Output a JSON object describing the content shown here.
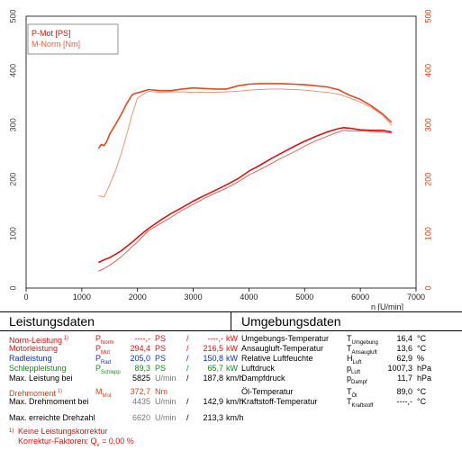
{
  "chart_data": {
    "type": "line",
    "xlabel": "n [U/min]",
    "xlim": [
      0,
      7000
    ],
    "x_ticks": [
      "0",
      "1000",
      "2000",
      "3000",
      "4000",
      "5000",
      "6000",
      "7000"
    ],
    "ylim_left": [
      0,
      500
    ],
    "y_ticks_left": [
      "0",
      "100",
      "200",
      "300",
      "400",
      "500"
    ],
    "ylim_right": [
      0,
      500
    ],
    "y_ticks_right": [
      "0",
      "100",
      "200",
      "300",
      "400",
      "500"
    ],
    "grid": true,
    "legend_position": "top-left",
    "legend": [
      {
        "label": "P-Mot [PS]",
        "color": "#e01010"
      },
      {
        "label": "M-Norm [Nm]",
        "color": "#f06030"
      }
    ],
    "series": [
      {
        "name": "P-Mot [PS]",
        "axis": "left",
        "color": "#dd1111",
        "width": 1.6,
        "x": [
          1300,
          1400,
          1500,
          1600,
          1700,
          1800,
          1900,
          2000,
          2200,
          2400,
          2600,
          2800,
          3000,
          3200,
          3400,
          3600,
          3800,
          4000,
          4200,
          4400,
          4600,
          4800,
          5000,
          5200,
          5400,
          5600,
          5700,
          5800,
          6000,
          6200,
          6400,
          6560
        ],
        "y": [
          47,
          52,
          56,
          62,
          68,
          76,
          84,
          93,
          110,
          124,
          137,
          148,
          160,
          170,
          180,
          190,
          201,
          215,
          226,
          238,
          249,
          260,
          270,
          279,
          287,
          293,
          295,
          294,
          291,
          290,
          290,
          287
        ]
      },
      {
        "name": "P-Mot [PS] thin",
        "axis": "left",
        "color": "#e85050",
        "width": 0.9,
        "x": [
          1300,
          1400,
          1500,
          1600,
          1700,
          1800,
          1900,
          2000,
          2200,
          2400,
          2600,
          2800,
          3000,
          3200,
          3400,
          3600,
          3800,
          4000,
          4200,
          4400,
          4600,
          4800,
          5000,
          5200,
          5400,
          5600,
          5700,
          5800,
          6000,
          6200,
          6400,
          6560
        ],
        "y": [
          31,
          36,
          42,
          49,
          57,
          66,
          76,
          85,
          106,
          118,
          130,
          143,
          154,
          165,
          175,
          184,
          195,
          208,
          218,
          229,
          240,
          250,
          261,
          271,
          279,
          287,
          290,
          289,
          289,
          288,
          287,
          285
        ]
      },
      {
        "name": "M-Norm [Nm]",
        "axis": "right",
        "color": "#e24a1e",
        "width": 1.6,
        "x": [
          1300,
          1350,
          1400,
          1450,
          1500,
          1600,
          1700,
          1800,
          1900,
          1950,
          2000,
          2200,
          2400,
          2600,
          2800,
          3000,
          3200,
          3400,
          3600,
          3800,
          4000,
          4200,
          4400,
          4600,
          4800,
          5000,
          5200,
          5400,
          5600,
          5800,
          6000,
          6200,
          6400,
          6560
        ],
        "y": [
          257,
          264,
          262,
          270,
          283,
          300,
          318,
          338,
          355,
          358,
          359,
          365,
          363,
          363,
          366,
          368,
          367,
          366,
          366,
          372,
          375,
          376,
          376,
          376,
          375,
          374,
          372,
          370,
          365,
          355,
          347,
          335,
          320,
          305
        ]
      },
      {
        "name": "M-Norm [Nm] thin",
        "axis": "right",
        "color": "#f08a6a",
        "width": 0.9,
        "x": [
          1300,
          1400,
          1500,
          1600,
          1700,
          1800,
          1900,
          2000,
          2200,
          2400,
          2600,
          2800,
          3000,
          3200,
          3400,
          3600,
          3800,
          4000,
          4200,
          4400,
          4600,
          4800,
          5000,
          5200,
          5400,
          5600,
          5800,
          6000,
          6200,
          6400,
          6560
        ],
        "y": [
          170,
          167,
          190,
          215,
          245,
          280,
          318,
          350,
          362,
          360,
          361,
          361,
          360,
          360,
          360,
          361,
          362,
          364,
          365,
          366,
          366,
          365,
          364,
          362,
          360,
          357,
          350,
          342,
          332,
          318,
          300
        ]
      }
    ]
  },
  "leistung": {
    "title": "Leistungsdaten",
    "rows": [
      {
        "label": "Norm-Leistung",
        "label_sup": "1)",
        "sym": "P",
        "sub": "Norm",
        "v1": "----,-",
        "u1": "PS",
        "sep": "/",
        "v2": "----,-",
        "u2": "kW",
        "color": "#e01010"
      },
      {
        "label": "Motorleistung",
        "label_sup": "",
        "sym": "P",
        "sub": "Mot",
        "v1": "294,4",
        "u1": "PS",
        "sep": "/",
        "v2": "216,5",
        "u2": "kW",
        "color": "#e01010"
      },
      {
        "label": "Radleistung",
        "label_sup": "",
        "sym": "P",
        "sub": "Rad",
        "v1": "205,0",
        "u1": "PS",
        "sep": "/",
        "v2": "150,8",
        "u2": "kW",
        "color": "#1030c0"
      },
      {
        "label": "Schleppleistung",
        "label_sup": "",
        "sym": "P",
        "sub": "Schlepp",
        "v1": "89,3",
        "u1": "PS",
        "sep": "/",
        "v2": "65,7",
        "u2": "kW",
        "color": "#10901c"
      },
      {
        "label": "Max. Leistung bei",
        "label_sup": "",
        "sym": "",
        "sub": "",
        "v1": "5825",
        "u1": "U/min",
        "sep": "/",
        "v2": "187,8",
        "u2": "km/h",
        "color": "#000000"
      }
    ],
    "drehmoment": {
      "label": "Drehmoment",
      "label_sup": "1)",
      "sym": "M",
      "sub": "Mot",
      "v1": "372,7",
      "u1": "Nm",
      "color": "#e04010"
    },
    "max_drehmoment": {
      "label": "Max. Drehmoment bei",
      "v1": "4435",
      "u1": "U/min",
      "sep": "/",
      "v2": "142,9",
      "u2": "km/h"
    },
    "max_drehzahl": {
      "label": "Max. erreichte Drehzahl",
      "v1": "6620",
      "u1": "U/min",
      "sep": "/",
      "v2": "213,3",
      "u2": "km/h"
    },
    "footnote1": "Keine Leistungskorrektur",
    "footnote1_sup": "1)",
    "footnote2": "Korrektur-Faktoren: Q",
    "footnote2_sub": "v",
    "footnote2_val": " =   0,00 %"
  },
  "umgebung": {
    "title": "Umgebungsdaten",
    "rows": [
      {
        "label": "Umgebungs-Temperatur",
        "sym": "T",
        "sub": "Umgebung",
        "val": "16,4",
        "unit": "°C"
      },
      {
        "label": "Ansaugluft-Temperatur",
        "sym": "T",
        "sub": "Ansaugluft",
        "val": "13,6",
        "unit": "°C"
      },
      {
        "label": "Relative Luftfeuchte",
        "sym": "H",
        "sub": "Luft",
        "val": "62,9",
        "unit": "%"
      },
      {
        "label": "Luftdruck",
        "sym": "p",
        "sub": "Luft",
        "val": "1007,3",
        "unit": "hPa"
      },
      {
        "label": "Dampfdruck",
        "sym": "p",
        "sub": "Dampf",
        "val": "11,7",
        "unit": "hPa"
      },
      {
        "label": "Öl-Temperatur",
        "sym": "T",
        "sub": "Öl",
        "val": "89,0",
        "unit": "°C"
      },
      {
        "label": "Kraftstoff-Temperatur",
        "sym": "T",
        "sub": "Kraftstoff",
        "val": "----,-",
        "unit": "°C"
      }
    ]
  }
}
